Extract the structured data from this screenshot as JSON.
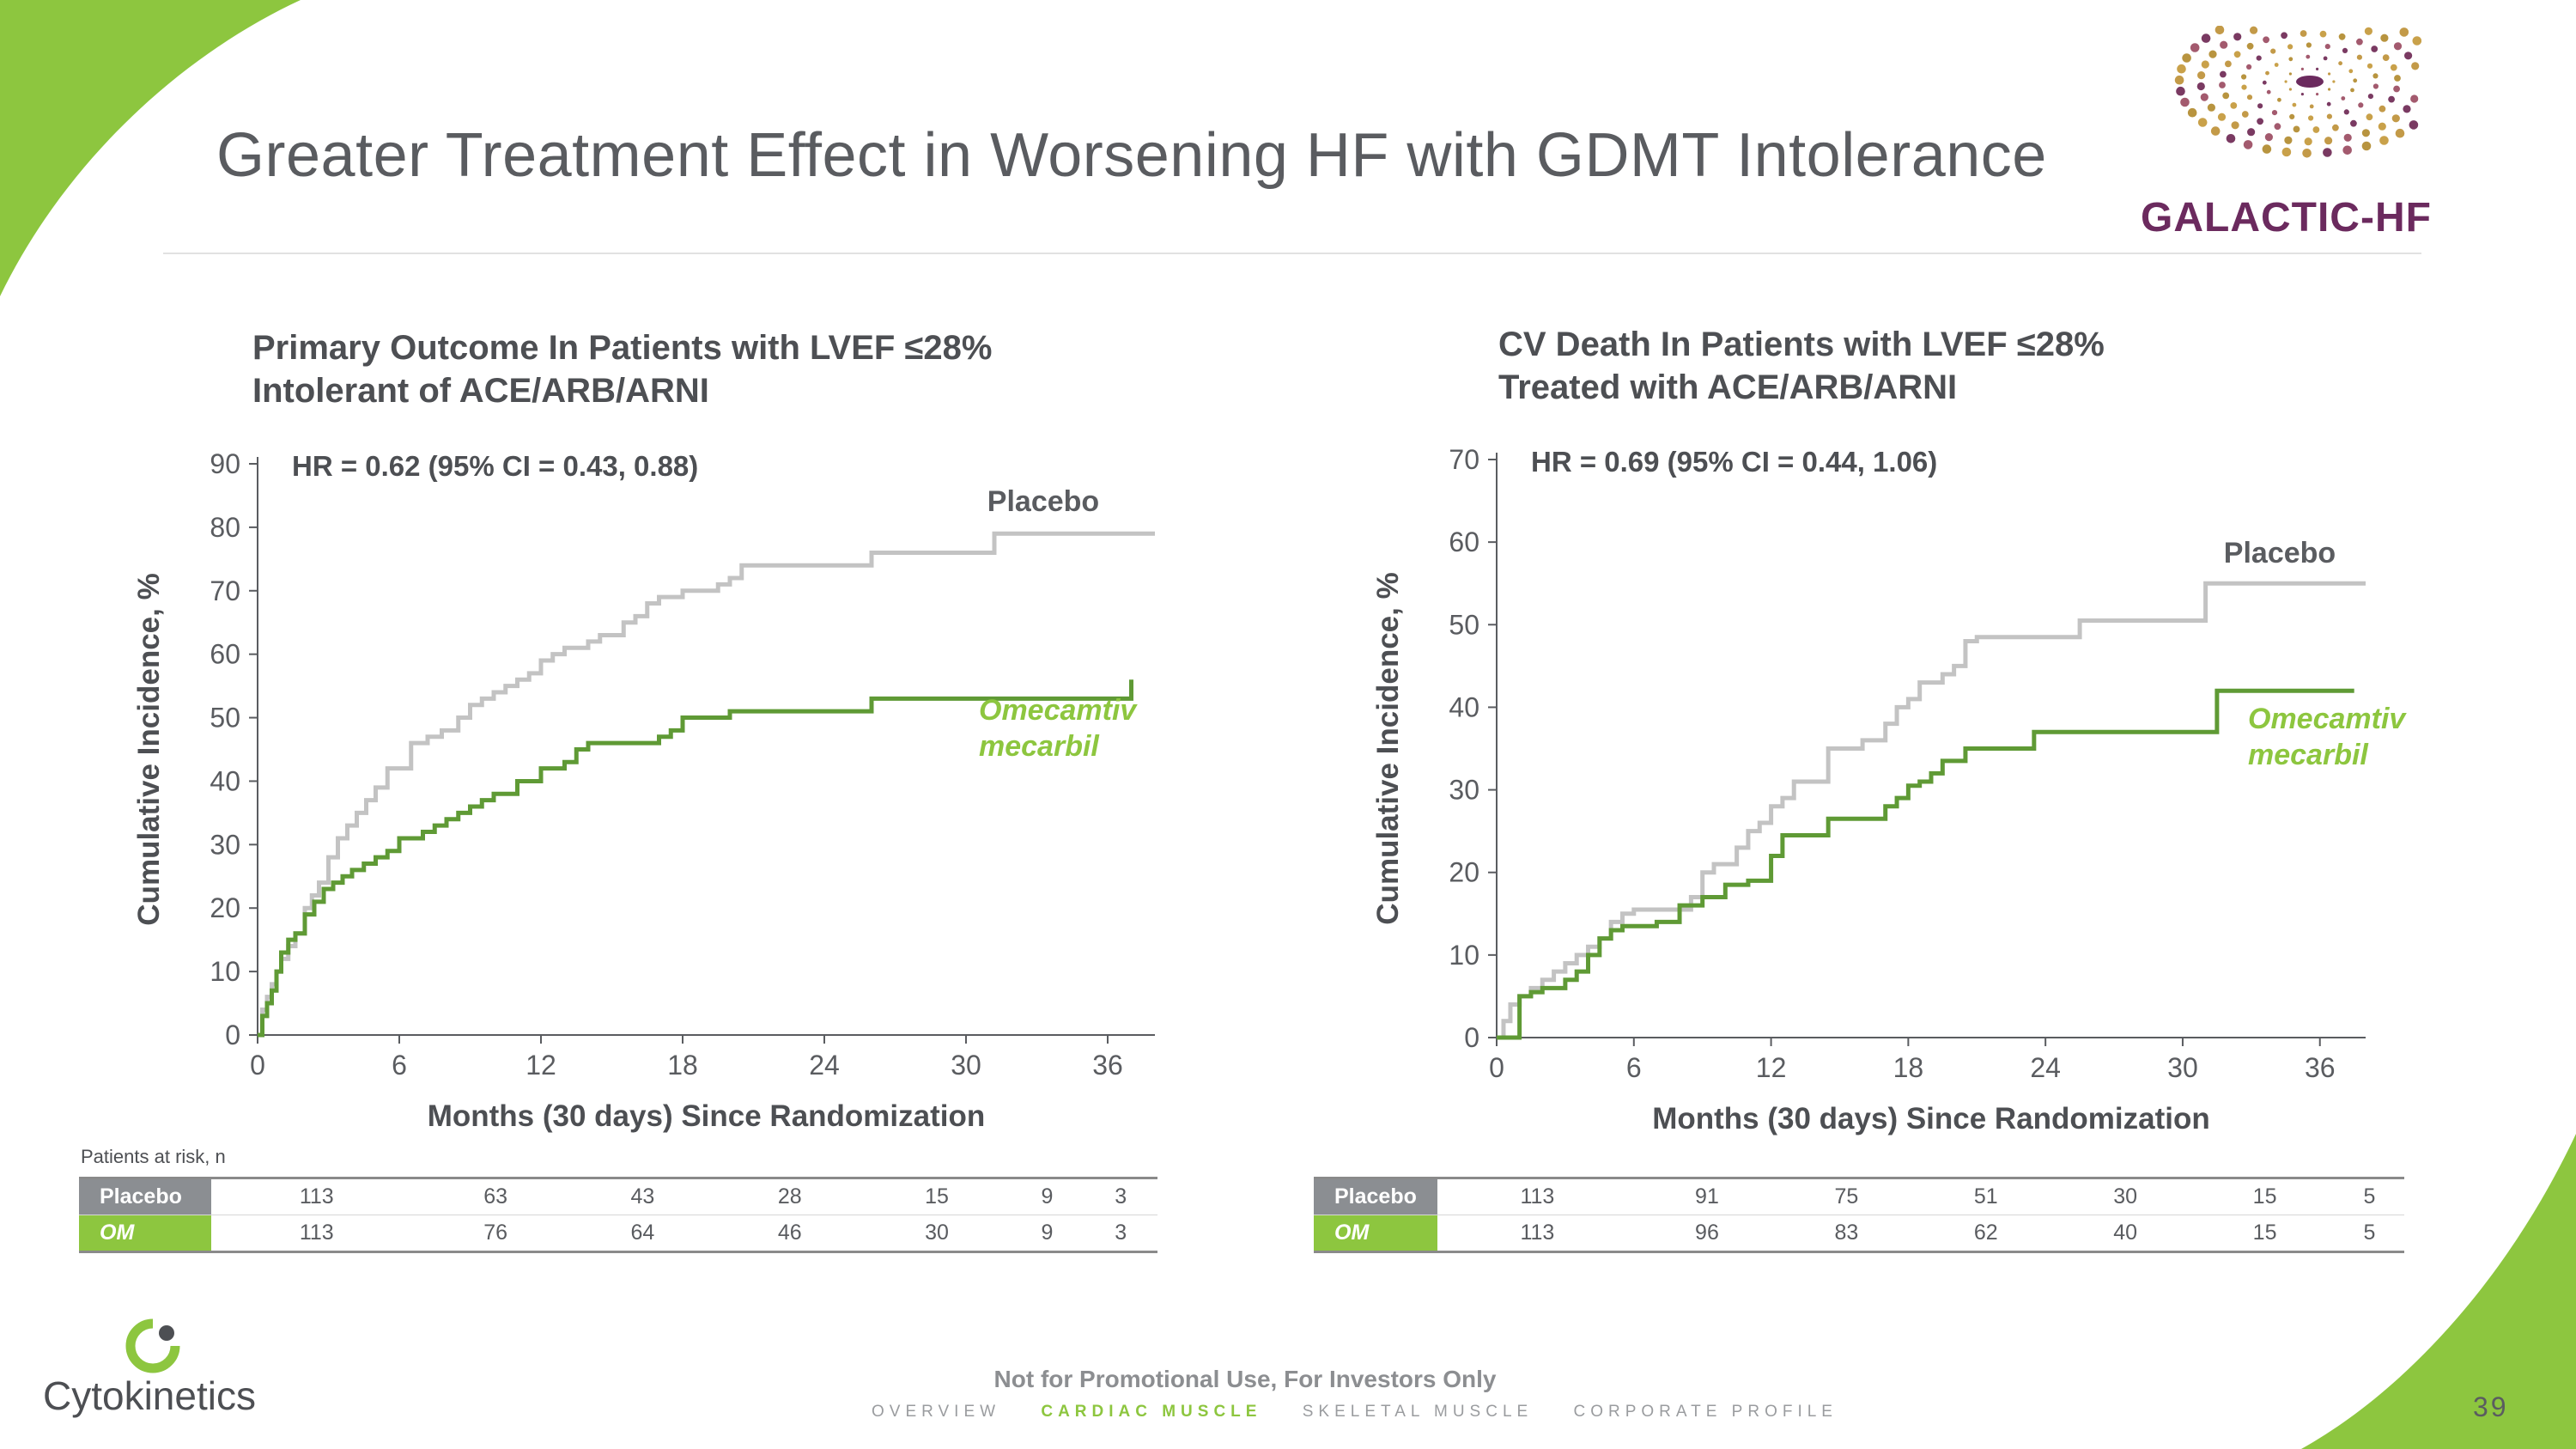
{
  "slide": {
    "title": "Greater Treatment Effect in Worsening HF with GDMT Intolerance",
    "page_number": "39",
    "footer_note": "Not for Promotional Use, For Investors Only",
    "nav": [
      "OVERVIEW",
      "CARDIAC MUSCLE",
      "SKELETAL MUSCLE",
      "CORPORATE PROFILE"
    ],
    "nav_active": "CARDIAC MUSCLE",
    "company_logo_text": "Cytokinetics",
    "trial_logo_text": "GALACTIC-HF",
    "colors": {
      "accent_green": "#8dc63f",
      "placebo_line": "#c3c3c3",
      "om_line": "#5f9a35",
      "om_label": "#8dc63f",
      "trial_purple": "#6b2a5e",
      "risk_label_gray": "#8b8e92"
    }
  },
  "risk_table_caption": "Patients at risk, n",
  "chart_data": [
    {
      "type": "line",
      "title": "Primary Outcome In Patients with LVEF ≤28%",
      "subtitle": "Intolerant of ACE/ARB/ARNI",
      "annotation": "HR = 0.62 (95% CI = 0.43, 0.88)",
      "xlabel": "Months (30 days) Since Randomization",
      "ylabel": "Cumulative Incidence, %",
      "xlim": [
        0,
        38
      ],
      "ylim": [
        0,
        90
      ],
      "xticks": [
        0,
        6,
        12,
        18,
        24,
        30,
        36
      ],
      "yticks": [
        0,
        10,
        20,
        30,
        40,
        50,
        60,
        70,
        80,
        90
      ],
      "grid": false,
      "series": [
        {
          "name": "Placebo",
          "color": "#c3c3c3",
          "step": true,
          "x": [
            0,
            0.2,
            0.4,
            0.6,
            0.8,
            1.0,
            1.3,
            1.6,
            2.0,
            2.3,
            2.6,
            3.0,
            3.4,
            3.8,
            4.2,
            4.6,
            5.0,
            5.5,
            6.5,
            7.2,
            7.8,
            8.5,
            9.0,
            9.5,
            10.0,
            10.5,
            11.0,
            11.5,
            12.0,
            12.5,
            13.0,
            14.0,
            14.5,
            15.5,
            16.0,
            16.5,
            17.0,
            18.0,
            19.5,
            20.0,
            20.5,
            26.0,
            31.2,
            38.0
          ],
          "y": [
            0,
            4,
            6,
            8,
            10,
            12,
            14,
            16,
            20,
            22,
            24,
            28,
            31,
            33,
            35,
            37,
            39,
            42,
            46,
            47,
            48,
            50,
            52,
            53,
            54,
            55,
            56,
            57,
            59,
            60,
            61,
            62,
            63,
            65,
            66,
            68,
            69,
            70,
            71,
            72,
            74,
            76,
            79,
            79
          ]
        },
        {
          "name": "Omecamtiv mecarbil",
          "color": "#5f9a35",
          "step": true,
          "x": [
            0,
            0.2,
            0.4,
            0.6,
            0.8,
            1.0,
            1.3,
            1.6,
            2.0,
            2.4,
            2.8,
            3.2,
            3.6,
            4.0,
            4.5,
            5.0,
            5.5,
            6.0,
            7.0,
            7.5,
            8.0,
            8.5,
            9.0,
            9.5,
            10.0,
            11.0,
            12.0,
            13.0,
            13.5,
            14.0,
            16.0,
            17.0,
            17.5,
            18.0,
            20.0,
            23.0,
            26.0,
            37.0
          ],
          "y": [
            0,
            3,
            5,
            7,
            10,
            13,
            15,
            16,
            19,
            21,
            23,
            24,
            25,
            26,
            27,
            28,
            29,
            31,
            32,
            33,
            34,
            35,
            36,
            37,
            38,
            40,
            42,
            43,
            45,
            46,
            46,
            47,
            48,
            50,
            51,
            51,
            53,
            56
          ]
        }
      ],
      "series_labels": [
        "Placebo",
        "Omecamtiv",
        "mecarbil"
      ],
      "risk_table": {
        "rows": [
          {
            "label": "Placebo",
            "values": [
              "113",
              "63",
              "43",
              "28",
              "15",
              "9",
              "3"
            ]
          },
          {
            "label": "OM",
            "values": [
              "113",
              "76",
              "64",
              "46",
              "30",
              "9",
              "3"
            ]
          }
        ]
      }
    },
    {
      "type": "line",
      "title": "CV Death In Patients with LVEF ≤28%",
      "subtitle": "Treated with ACE/ARB/ARNI",
      "annotation": "HR = 0.69 (95% CI = 0.44, 1.06)",
      "xlabel": "Months (30 days) Since Randomization",
      "ylabel": "Cumulative Incidence, %",
      "xlim": [
        0,
        38
      ],
      "ylim": [
        0,
        70
      ],
      "xticks": [
        0,
        6,
        12,
        18,
        24,
        30,
        36
      ],
      "yticks": [
        0,
        10,
        20,
        30,
        40,
        50,
        60,
        70
      ],
      "grid": false,
      "series": [
        {
          "name": "Placebo",
          "color": "#c3c3c3",
          "step": true,
          "x": [
            0,
            0.3,
            0.6,
            1.0,
            1.5,
            2.0,
            2.5,
            3.0,
            3.5,
            4.0,
            4.5,
            5.0,
            5.5,
            6.0,
            8.5,
            9.0,
            9.5,
            10.5,
            11.0,
            11.5,
            12.0,
            12.5,
            13.0,
            14.5,
            16.0,
            17.0,
            17.5,
            18.0,
            18.5,
            19.5,
            20.0,
            20.5,
            21.0,
            25.5,
            31.0,
            38.0
          ],
          "y": [
            0,
            2,
            4,
            5,
            6,
            7,
            8,
            9,
            10,
            11,
            12,
            14,
            15,
            15.5,
            17,
            20,
            21,
            23,
            25,
            26,
            28,
            29,
            31,
            35,
            36,
            38,
            40,
            41,
            43,
            44,
            45,
            48,
            48.5,
            50.5,
            55,
            55
          ]
        },
        {
          "name": "Omecamtiv mecarbil",
          "color": "#5f9a35",
          "step": true,
          "x": [
            0,
            1.0,
            1.5,
            2.0,
            3.0,
            3.5,
            4.0,
            4.5,
            5.0,
            5.5,
            6.0,
            7.0,
            8.0,
            9.0,
            10.0,
            11.0,
            12.0,
            12.5,
            14.5,
            17.0,
            17.5,
            18.0,
            18.5,
            19.0,
            19.5,
            20.5,
            23.5,
            25.0,
            31.5,
            37.5
          ],
          "y": [
            0,
            5,
            5.5,
            6,
            7,
            8,
            10,
            12,
            13,
            13.5,
            13.5,
            14,
            16,
            17,
            18.5,
            19,
            22,
            24.5,
            26.5,
            28,
            29,
            30.5,
            31,
            32,
            33.5,
            35,
            37,
            37,
            42,
            42
          ]
        }
      ],
      "series_labels": [
        "Placebo",
        "Omecamtiv",
        "mecarbil"
      ],
      "risk_table": {
        "rows": [
          {
            "label": "Placebo",
            "values": [
              "113",
              "91",
              "75",
              "51",
              "30",
              "15",
              "5"
            ]
          },
          {
            "label": "OM",
            "values": [
              "113",
              "96",
              "83",
              "62",
              "40",
              "15",
              "5"
            ]
          }
        ]
      }
    }
  ]
}
